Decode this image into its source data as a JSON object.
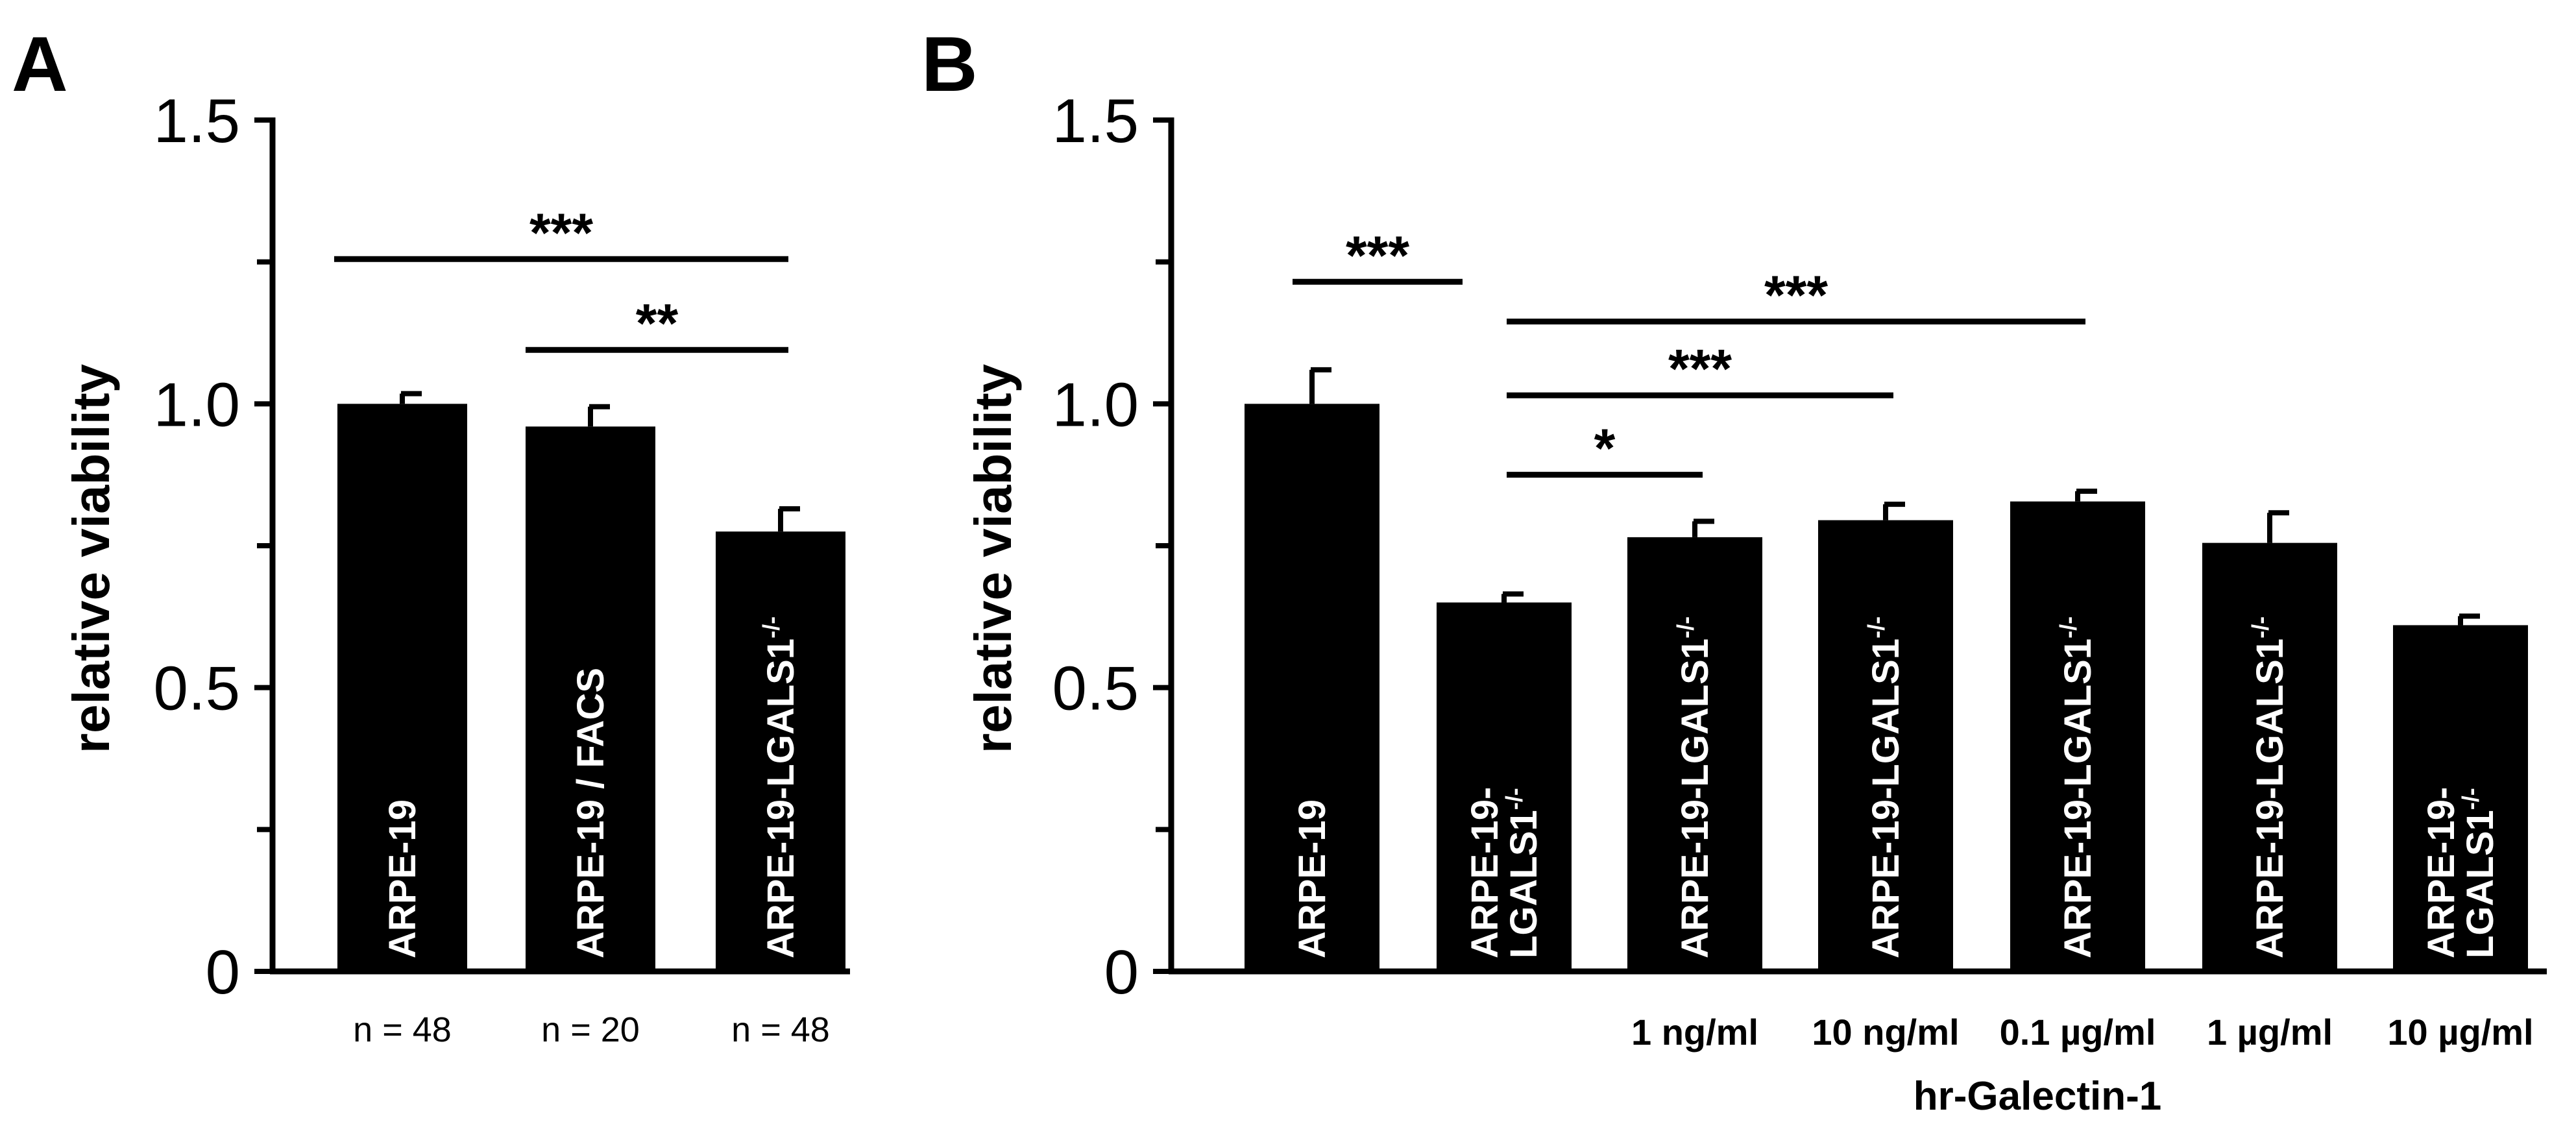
{
  "chart_data": [
    {
      "panel": "A",
      "type": "bar",
      "title": "",
      "xlabel": "",
      "ylabel": "relative viability",
      "ylim": [
        0,
        1.5
      ],
      "yticks": [
        "0",
        "0.5",
        "1.0",
        "1.5"
      ],
      "ytick_values": [
        0,
        0.5,
        1.0,
        1.5
      ],
      "grid": false,
      "categories": [
        {
          "main": "ARPE-19",
          "sup": ""
        },
        {
          "main": "ARPE-19 / FACS",
          "sup": ""
        },
        {
          "main": "ARPE-19-LGALS1",
          "sup": "-/-"
        }
      ],
      "values": [
        1.0,
        0.96,
        0.775
      ],
      "errors": [
        0.018,
        0.035,
        0.04
      ],
      "n_labels": [
        "n = 48",
        "n = 20",
        "n = 48"
      ],
      "significance": [
        {
          "from": 0,
          "to": 2,
          "y": 1.255,
          "label": "***"
        },
        {
          "from": 1,
          "to": 2,
          "y": 1.095,
          "label": "**"
        }
      ]
    },
    {
      "panel": "B",
      "type": "bar",
      "title": "",
      "xlabel": "hr-Galectin-1",
      "ylabel": "relative viability",
      "ylim": [
        0,
        1.5
      ],
      "yticks": [
        "0",
        "0.5",
        "1.0",
        "1.5"
      ],
      "ytick_values": [
        0,
        0.5,
        1.0,
        1.5
      ],
      "grid": false,
      "categories": [
        {
          "main": "ARPE-19",
          "sup": ""
        },
        {
          "main": "ARPE-19-",
          "main2": "LGALS1",
          "sup": "-/-"
        },
        {
          "main": "ARPE-19-LGALS1",
          "sup": "-/-"
        },
        {
          "main": "ARPE-19-LGALS1",
          "sup": "-/-"
        },
        {
          "main": "ARPE-19-LGALS1",
          "sup": "-/-"
        },
        {
          "main": "ARPE-19-LGALS1",
          "sup": "-/-"
        },
        {
          "main": "ARPE-19-",
          "main2": "LGALS1",
          "sup": "-/-"
        }
      ],
      "values": [
        1.0,
        0.65,
        0.765,
        0.795,
        0.828,
        0.755,
        0.61
      ],
      "errors": [
        0.06,
        0.015,
        0.028,
        0.028,
        0.018,
        0.053,
        0.016
      ],
      "concentrations": [
        "",
        "",
        "1 ng/ml",
        "10 ng/ml",
        "0.1 µg/ml",
        "1 µg/ml",
        "10 µg/ml"
      ],
      "significance": [
        {
          "from": 0,
          "to": 1,
          "y": 1.215,
          "label": "***",
          "style": "short"
        },
        {
          "from": 1,
          "to": 4,
          "y": 1.145,
          "label": "***"
        },
        {
          "from": 1,
          "to": 3,
          "y": 1.015,
          "label": "***"
        },
        {
          "from": 1,
          "to": 2,
          "y": 0.875,
          "label": "*"
        }
      ]
    }
  ]
}
